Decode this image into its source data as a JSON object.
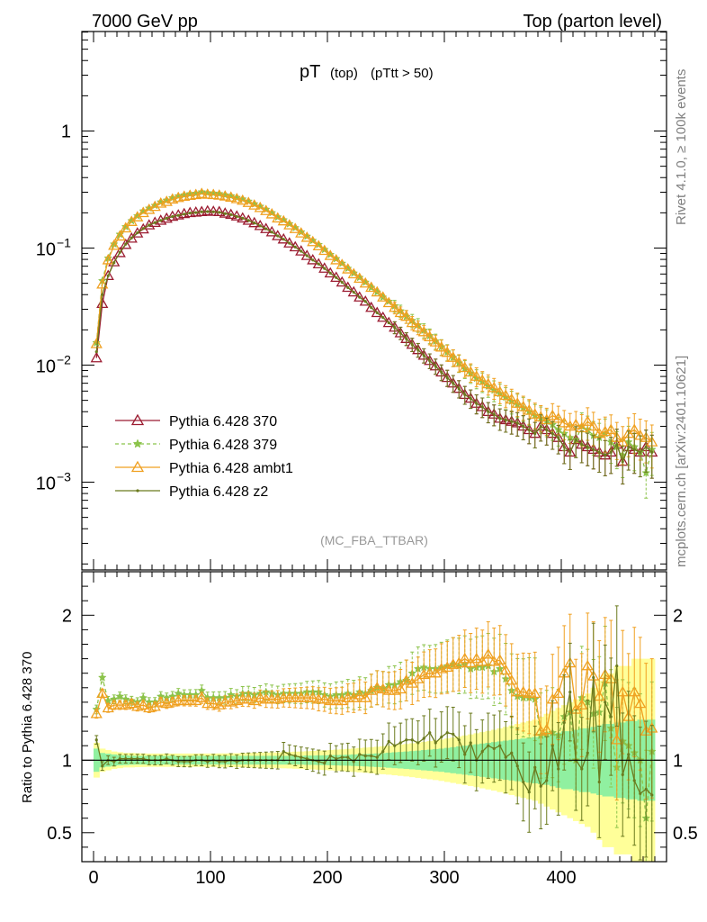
{
  "header": {
    "left": "7000 GeV pp",
    "right": "Top (parton level)"
  },
  "side_labels": {
    "rivet": "Rivet 4.1.0, ≥ 100k events",
    "mcplots": "mcplots.cern.ch [arXiv:2401.10621]"
  },
  "colors": {
    "p370": "#9b1b30",
    "p379": "#8bc34a",
    "ambt1": "#f0a020",
    "z2": "#6b7a1e",
    "band_inner": "#90f0a0",
    "band_outer": "#ffff99"
  },
  "chart_data": {
    "type": "line",
    "title_main": "pT",
    "title_sub1": "(top)",
    "title_sub2": "(pTtt > 50)",
    "analysis": "(MC_FBA_TTBAR)",
    "ylabel_ratio": "Ratio to Pythia 6.428 370",
    "xlim": [
      -10,
      490
    ],
    "ylim_main_log10": [
      -3.75,
      0.85
    ],
    "ylim_ratio": [
      0.3,
      2.3
    ],
    "x_ticks": [
      0,
      100,
      200,
      300,
      400
    ],
    "y_ticks_main": [
      {
        "label": "1",
        "exp": "",
        "log10": 0
      },
      {
        "label": "10",
        "exp": "−1",
        "log10": -1
      },
      {
        "label": "10",
        "exp": "−2",
        "log10": -2
      },
      {
        "label": "10",
        "exp": "−3",
        "log10": -3
      }
    ],
    "y_ticks_ratio": [
      {
        "label": "0.5",
        "value": 0.5
      },
      {
        "label": "1",
        "value": 1
      },
      {
        "label": "2",
        "value": 2
      }
    ],
    "x": [
      2.5,
      7.5,
      12.5,
      17.5,
      22.5,
      27.5,
      32.5,
      37.5,
      42.5,
      47.5,
      52.5,
      57.5,
      62.5,
      67.5,
      72.5,
      77.5,
      82.5,
      87.5,
      92.5,
      97.5,
      102.5,
      107.5,
      112.5,
      117.5,
      122.5,
      127.5,
      132.5,
      137.5,
      142.5,
      147.5,
      152.5,
      157.5,
      162.5,
      167.5,
      172.5,
      177.5,
      182.5,
      187.5,
      192.5,
      197.5,
      202.5,
      207.5,
      212.5,
      217.5,
      222.5,
      227.5,
      232.5,
      237.5,
      242.5,
      247.5,
      252.5,
      257.5,
      262.5,
      267.5,
      272.5,
      277.5,
      282.5,
      287.5,
      292.5,
      297.5,
      302.5,
      307.5,
      312.5,
      317.5,
      322.5,
      327.5,
      332.5,
      337.5,
      342.5,
      347.5,
      352.5,
      357.5,
      362.5,
      367.5,
      372.5,
      377.5,
      382.5,
      387.5,
      392.5,
      397.5,
      402.5,
      407.5,
      412.5,
      417.5,
      422.5,
      427.5,
      432.5,
      437.5,
      442.5,
      447.5,
      452.5,
      457.5,
      462.5,
      467.5,
      472.5,
      477.5
    ],
    "series": [
      {
        "name": "Pythia 6.428 370",
        "color_key": "p370",
        "marker": "triangle-open",
        "dashed": false,
        "values": [
          0.0115,
          0.0335,
          0.058,
          0.076,
          0.091,
          0.107,
          0.121,
          0.134,
          0.145,
          0.157,
          0.165,
          0.172,
          0.179,
          0.186,
          0.191,
          0.196,
          0.2,
          0.202,
          0.204,
          0.207,
          0.205,
          0.204,
          0.198,
          0.193,
          0.187,
          0.18,
          0.172,
          0.164,
          0.155,
          0.146,
          0.137,
          0.127,
          0.119,
          0.11,
          0.102,
          0.094,
          0.086,
          0.079,
          0.073,
          0.067,
          0.061,
          0.056,
          0.051,
          0.046,
          0.042,
          0.038,
          0.035,
          0.031,
          0.028,
          0.0255,
          0.023,
          0.021,
          0.0188,
          0.0168,
          0.015,
          0.0135,
          0.0121,
          0.0109,
          0.0098,
          0.0087,
          0.0078,
          0.007,
          0.0063,
          0.0056,
          0.0052,
          0.0047,
          0.0044,
          0.004,
          0.0038,
          0.0035,
          0.0034,
          0.0033,
          0.0032,
          0.003,
          0.0028,
          0.0026,
          0.003,
          0.0028,
          0.0026,
          0.0024,
          0.002,
          0.0018,
          0.0023,
          0.0021,
          0.002,
          0.0019,
          0.0018,
          0.0017,
          0.0018,
          0.0021,
          0.0015,
          0.002,
          0.0019,
          0.0018,
          0.002,
          0.0018
        ],
        "ratio": [
          1,
          1,
          1,
          1,
          1,
          1,
          1,
          1,
          1,
          1,
          1,
          1,
          1,
          1,
          1,
          1,
          1,
          1,
          1,
          1,
          1,
          1,
          1,
          1,
          1,
          1,
          1,
          1,
          1,
          1,
          1,
          1,
          1,
          1,
          1,
          1,
          1,
          1,
          1,
          1,
          1,
          1,
          1,
          1,
          1,
          1,
          1,
          1,
          1,
          1,
          1,
          1,
          1,
          1,
          1,
          1,
          1,
          1,
          1,
          1,
          1,
          1,
          1,
          1,
          1,
          1,
          1,
          1,
          1,
          1,
          1,
          1,
          1,
          1,
          1,
          1,
          1,
          1,
          1,
          1,
          1,
          1,
          1,
          1,
          1,
          1,
          1,
          1,
          1,
          1,
          1,
          1,
          1,
          1,
          1,
          1
        ]
      },
      {
        "name": "Pythia 6.428 379",
        "color_key": "p379",
        "marker": "star",
        "dashed": true,
        "values": [
          0.0155,
          0.0525,
          0.082,
          0.108,
          0.131,
          0.152,
          0.171,
          0.188,
          0.207,
          0.219,
          0.231,
          0.247,
          0.256,
          0.268,
          0.278,
          0.284,
          0.29,
          0.293,
          0.301,
          0.296,
          0.294,
          0.291,
          0.284,
          0.279,
          0.27,
          0.262,
          0.251,
          0.238,
          0.227,
          0.214,
          0.2,
          0.184,
          0.174,
          0.161,
          0.149,
          0.137,
          0.126,
          0.116,
          0.107,
          0.097,
          0.088,
          0.081,
          0.074,
          0.067,
          0.061,
          0.056,
          0.051,
          0.046,
          0.042,
          0.038,
          0.035,
          0.032,
          0.029,
          0.026,
          0.024,
          0.022,
          0.0198,
          0.0178,
          0.016,
          0.0143,
          0.0129,
          0.0116,
          0.0104,
          0.0093,
          0.0085,
          0.0077,
          0.0072,
          0.0066,
          0.0061,
          0.0057,
          0.0053,
          0.0049,
          0.0046,
          0.0043,
          0.004,
          0.0037,
          0.0035,
          0.0033,
          0.0031,
          0.0028,
          0.0026,
          0.0024,
          0.0023,
          0.003,
          0.0028,
          0.0025,
          0.0024,
          0.0026,
          0.0022,
          0.002,
          0.0017,
          0.0022,
          0.002,
          0.0018,
          0.0012,
          0.0019
        ],
        "ratio": [
          1.35,
          1.57,
          1.41,
          1.42,
          1.44,
          1.42,
          1.41,
          1.4,
          1.43,
          1.4,
          1.4,
          1.44,
          1.43,
          1.44,
          1.46,
          1.45,
          1.45,
          1.45,
          1.48,
          1.43,
          1.43,
          1.43,
          1.43,
          1.45,
          1.44,
          1.46,
          1.46,
          1.45,
          1.46,
          1.47,
          1.46,
          1.45,
          1.46,
          1.46,
          1.46,
          1.46,
          1.47,
          1.47,
          1.47,
          1.45,
          1.44,
          1.45,
          1.45,
          1.46,
          1.45,
          1.47,
          1.46,
          1.48,
          1.5,
          1.49,
          1.52,
          1.52,
          1.54,
          1.55,
          1.6,
          1.63,
          1.64,
          1.63,
          1.63,
          1.64,
          1.65,
          1.66,
          1.65,
          1.66,
          1.63,
          1.64,
          1.64,
          1.65,
          1.61,
          1.63,
          1.56,
          1.48,
          1.44,
          1.43,
          1.43,
          1.42,
          1.17,
          1.18,
          1.19,
          1.17,
          1.3,
          1.33,
          1.0,
          1.43,
          1.4,
          1.32,
          1.33,
          1.53,
          1.22,
          0.95,
          1.13,
          1.1,
          1.05,
          1.0,
          0.6,
          1.06
        ]
      },
      {
        "name": "Pythia 6.428 ambt1",
        "color_key": "ambt1",
        "marker": "triangle-open",
        "dashed": false,
        "values": [
          0.0152,
          0.049,
          0.079,
          0.105,
          0.126,
          0.148,
          0.168,
          0.184,
          0.2,
          0.213,
          0.226,
          0.241,
          0.249,
          0.261,
          0.269,
          0.276,
          0.281,
          0.285,
          0.291,
          0.287,
          0.285,
          0.282,
          0.277,
          0.271,
          0.263,
          0.255,
          0.244,
          0.232,
          0.221,
          0.208,
          0.195,
          0.18,
          0.17,
          0.157,
          0.146,
          0.134,
          0.123,
          0.113,
          0.104,
          0.095,
          0.086,
          0.079,
          0.072,
          0.066,
          0.06,
          0.055,
          0.05,
          0.046,
          0.042,
          0.038,
          0.034,
          0.031,
          0.028,
          0.026,
          0.023,
          0.021,
          0.0192,
          0.0174,
          0.0157,
          0.0142,
          0.0128,
          0.0116,
          0.0105,
          0.0095,
          0.0087,
          0.008,
          0.0074,
          0.0069,
          0.0064,
          0.0059,
          0.0055,
          0.0051,
          0.0047,
          0.0044,
          0.0041,
          0.0038,
          0.0036,
          0.0034,
          0.0037,
          0.0035,
          0.0032,
          0.003,
          0.0031,
          0.0029,
          0.0033,
          0.003,
          0.0026,
          0.0027,
          0.0028,
          0.0024,
          0.0022,
          0.0026,
          0.0028,
          0.0025,
          0.0024,
          0.0022
        ],
        "ratio": [
          1.32,
          1.46,
          1.36,
          1.38,
          1.38,
          1.38,
          1.39,
          1.37,
          1.38,
          1.36,
          1.37,
          1.4,
          1.39,
          1.4,
          1.41,
          1.41,
          1.41,
          1.41,
          1.43,
          1.39,
          1.39,
          1.38,
          1.4,
          1.4,
          1.41,
          1.42,
          1.42,
          1.41,
          1.43,
          1.42,
          1.42,
          1.42,
          1.43,
          1.43,
          1.43,
          1.43,
          1.43,
          1.43,
          1.42,
          1.42,
          1.41,
          1.41,
          1.41,
          1.43,
          1.43,
          1.45,
          1.43,
          1.48,
          1.5,
          1.49,
          1.48,
          1.48,
          1.49,
          1.55,
          1.53,
          1.56,
          1.59,
          1.6,
          1.6,
          1.63,
          1.64,
          1.66,
          1.67,
          1.7,
          1.67,
          1.7,
          1.68,
          1.73,
          1.68,
          1.69,
          1.62,
          1.55,
          1.47,
          1.47,
          1.46,
          1.46,
          1.2,
          1.21,
          1.42,
          1.46,
          1.6,
          1.67,
          1.35,
          1.38,
          1.65,
          1.58,
          1.44,
          1.59,
          1.56,
          1.14,
          1.47,
          1.3,
          1.47,
          1.39,
          1.2,
          1.22
        ]
      },
      {
        "name": "Pythia 6.428 z2",
        "color_key": "z2",
        "marker": "dot",
        "dashed": false,
        "values": [
          0.013,
          0.04,
          0.058,
          0.075,
          0.092,
          0.108,
          0.122,
          0.135,
          0.147,
          0.157,
          0.165,
          0.172,
          0.18,
          0.186,
          0.19,
          0.195,
          0.199,
          0.201,
          0.204,
          0.205,
          0.204,
          0.202,
          0.197,
          0.193,
          0.186,
          0.18,
          0.172,
          0.164,
          0.155,
          0.146,
          0.137,
          0.127,
          0.119,
          0.11,
          0.102,
          0.094,
          0.086,
          0.079,
          0.073,
          0.067,
          0.061,
          0.056,
          0.051,
          0.046,
          0.042,
          0.038,
          0.035,
          0.031,
          0.028,
          0.0255,
          0.023,
          0.021,
          0.0188,
          0.0168,
          0.015,
          0.0135,
          0.0121,
          0.0109,
          0.0098,
          0.0087,
          0.0078,
          0.007,
          0.0063,
          0.0056,
          0.0052,
          0.0047,
          0.0044,
          0.004,
          0.0038,
          0.0035,
          0.0034,
          0.0033,
          0.0032,
          0.003,
          0.0028,
          0.0026,
          0.003,
          0.0028,
          0.0026,
          0.0024,
          0.002,
          0.0018,
          0.0023,
          0.0021,
          0.002,
          0.0019,
          0.0018,
          0.0017,
          0.0018,
          0.0021,
          0.0015,
          0.002,
          0.0019,
          0.0018,
          0.002,
          0.0018
        ],
        "ratio": [
          1.14,
          0.96,
          1.0,
          0.99,
          1.01,
          1.01,
          1.01,
          1.01,
          1.01,
          1.0,
          1.0,
          1.0,
          1.01,
          1.0,
          0.99,
          0.99,
          0.99,
          1.0,
          1.0,
          0.99,
          1.0,
          0.99,
          0.99,
          1.0,
          0.99,
          1.0,
          1.0,
          1.0,
          1.0,
          1.0,
          1.0,
          1.0,
          1.06,
          1.04,
          1.03,
          1.02,
          1.01,
          1.0,
          0.99,
          0.98,
          1.03,
          1.01,
          1.02,
          1.02,
          0.99,
          1.04,
          1.03,
          1.03,
          1.02,
          1.06,
          1.13,
          1.1,
          1.12,
          1.14,
          1.14,
          1.12,
          1.15,
          1.19,
          1.12,
          1.16,
          1.19,
          1.18,
          1.14,
          1.04,
          1.12,
          1.0,
          1.06,
          1.1,
          1.08,
          1.1,
          1.02,
          1.05,
          0.96,
          0.85,
          0.78,
          0.95,
          0.82,
          0.86,
          1.1,
          0.94,
          1.26,
          1.47,
          1.0,
          0.94,
          1.05,
          1.57,
          0.85,
          1.4,
          1.3,
          1.65,
          0.9,
          1.04,
          0.86,
          0.77,
          0.8,
          0.76
        ]
      }
    ],
    "band_inner_halfwidth": [
      0.08,
      0.05,
      0.045,
      0.04,
      0.035,
      0.033,
      0.031,
      0.03,
      0.03,
      0.03,
      0.03,
      0.03,
      0.03,
      0.03,
      0.03,
      0.03,
      0.03,
      0.03,
      0.03,
      0.03,
      0.03,
      0.03,
      0.03,
      0.03,
      0.03,
      0.03,
      0.03,
      0.03,
      0.03,
      0.03,
      0.03,
      0.03,
      0.03,
      0.03,
      0.03,
      0.03,
      0.032,
      0.032,
      0.033,
      0.034,
      0.035,
      0.036,
      0.037,
      0.038,
      0.04,
      0.041,
      0.043,
      0.045,
      0.047,
      0.049,
      0.052,
      0.055,
      0.057,
      0.06,
      0.063,
      0.066,
      0.07,
      0.073,
      0.077,
      0.08,
      0.085,
      0.09,
      0.095,
      0.1,
      0.105,
      0.11,
      0.115,
      0.12,
      0.125,
      0.13,
      0.135,
      0.14,
      0.145,
      0.15,
      0.155,
      0.16,
      0.165,
      0.17,
      0.18,
      0.19,
      0.2,
      0.2,
      0.21,
      0.22,
      0.22,
      0.23,
      0.24,
      0.25,
      0.25,
      0.26,
      0.26,
      0.27,
      0.27,
      0.28,
      0.28,
      0.28
    ],
    "band_outer_halfwidth": [
      0.12,
      0.08,
      0.07,
      0.06,
      0.055,
      0.05,
      0.05,
      0.048,
      0.047,
      0.046,
      0.046,
      0.046,
      0.046,
      0.046,
      0.046,
      0.046,
      0.046,
      0.046,
      0.046,
      0.046,
      0.046,
      0.047,
      0.047,
      0.048,
      0.048,
      0.049,
      0.05,
      0.05,
      0.051,
      0.052,
      0.053,
      0.054,
      0.056,
      0.057,
      0.059,
      0.06,
      0.062,
      0.064,
      0.066,
      0.068,
      0.07,
      0.073,
      0.075,
      0.078,
      0.081,
      0.084,
      0.087,
      0.09,
      0.093,
      0.097,
      0.1,
      0.104,
      0.108,
      0.112,
      0.117,
      0.122,
      0.127,
      0.132,
      0.137,
      0.143,
      0.15,
      0.157,
      0.164,
      0.171,
      0.178,
      0.186,
      0.194,
      0.202,
      0.21,
      0.22,
      0.23,
      0.24,
      0.25,
      0.26,
      0.27,
      0.28,
      0.3,
      0.32,
      0.34,
      0.36,
      0.38,
      0.4,
      0.42,
      0.44,
      0.46,
      0.5,
      0.55,
      0.6,
      0.6,
      0.65,
      0.65,
      0.65,
      0.7,
      0.7,
      0.7,
      0.7
    ]
  }
}
